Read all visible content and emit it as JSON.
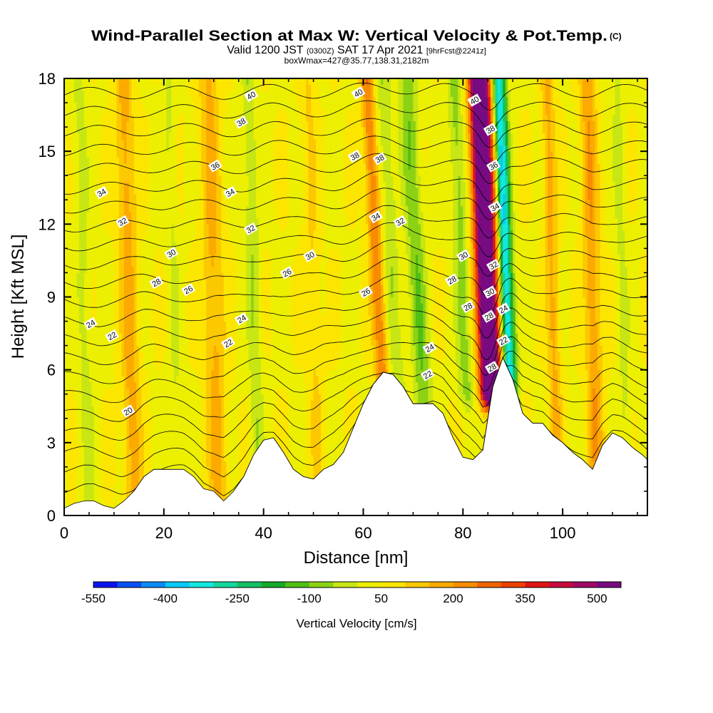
{
  "chart_data": {
    "type": "heatmap",
    "title": "Wind-Parallel Section at Max W: Vertical Velocity & Pot.Temp.",
    "title_mark": "(C)",
    "subtitle": {
      "lead": "Valid 1200 JST",
      "utc": "(0300Z)",
      "date": "SAT 17 Apr 2021",
      "fcst": "[9hrFcst@2241z]"
    },
    "subtitle2": "boxWmax=427@35.77,138.31,2182m",
    "xlabel": "Distance [nm]",
    "ylabel": "Height [Kft MSL]",
    "xlim": [
      0,
      117
    ],
    "ylim": [
      0,
      18
    ],
    "x_ticks": [
      0,
      20,
      40,
      60,
      80,
      100
    ],
    "y_ticks": [
      0,
      3,
      6,
      9,
      12,
      15,
      18
    ],
    "colorbar": {
      "label": "Vertical Velocity [cm/s]",
      "levels": [
        -550,
        -500,
        -450,
        -400,
        -350,
        -300,
        -250,
        -200,
        -150,
        -100,
        -50,
        0,
        50,
        100,
        150,
        200,
        250,
        300,
        350,
        400,
        450,
        500,
        550
      ],
      "tick_labels": [
        -550,
        -400,
        -250,
        -100,
        50,
        200,
        350,
        500
      ],
      "colors": [
        "#0a14f0",
        "#0a50f5",
        "#0a8cf8",
        "#0ac8f8",
        "#10e8e0",
        "#14d8a0",
        "#14c064",
        "#14aa28",
        "#50be14",
        "#8cd214",
        "#c8e614",
        "#ecf000",
        "#fce600",
        "#fcc800",
        "#fcaa00",
        "#f88c00",
        "#f06400",
        "#ec4000",
        "#e01414",
        "#c80a3c",
        "#a00a64",
        "#780a82"
      ]
    },
    "velocity_features": [
      {
        "x": 85,
        "w": 2.2,
        "val": 600
      },
      {
        "x": 84.4,
        "w": 1.3,
        "val": 150
      },
      {
        "x": 88.5,
        "w": 1.1,
        "val": -380
      },
      {
        "x": 89.7,
        "w": 1.0,
        "val": -150
      },
      {
        "x": 80,
        "w": 1.6,
        "val": -120
      },
      {
        "x": 71,
        "w": 1.8,
        "val": -140
      },
      {
        "x": 63,
        "w": 1.4,
        "val": 200
      },
      {
        "x": 66,
        "w": 1.5,
        "val": -90
      },
      {
        "x": 13,
        "w": 1.8,
        "val": 130
      },
      {
        "x": 4,
        "w": 1.5,
        "val": -60
      },
      {
        "x": 30,
        "w": 2.0,
        "val": 120
      },
      {
        "x": 38,
        "w": 1.3,
        "val": -90
      },
      {
        "x": 50,
        "w": 1.5,
        "val": 60
      },
      {
        "x": 98,
        "w": 1.3,
        "val": 120
      },
      {
        "x": 106,
        "w": 1.6,
        "val": 150
      },
      {
        "x": 112,
        "w": 1.2,
        "val": -60
      },
      {
        "x": 22,
        "w": 1.2,
        "val": -50
      }
    ],
    "terrain_x": [
      0,
      2,
      4,
      6,
      8,
      10,
      12,
      14,
      16,
      18,
      20,
      22,
      24,
      26,
      28,
      30,
      32,
      34,
      36,
      38,
      40,
      42,
      44,
      46,
      48,
      50,
      52,
      54,
      56,
      58,
      60,
      62,
      64,
      66,
      68,
      70,
      72,
      74,
      76,
      78,
      80,
      82,
      84,
      86,
      88,
      90,
      92,
      94,
      96,
      98,
      100,
      102,
      104,
      106,
      108,
      110,
      112,
      114,
      116,
      117
    ],
    "terrain_h": [
      0.3,
      0.5,
      0.6,
      0.6,
      0.4,
      0.3,
      0.6,
      1.0,
      1.6,
      1.9,
      1.9,
      1.9,
      1.9,
      1.6,
      1.1,
      1.0,
      0.6,
      1.0,
      1.6,
      2.5,
      3.1,
      3.2,
      2.6,
      1.9,
      1.6,
      1.5,
      1.9,
      2.1,
      2.6,
      3.6,
      4.6,
      5.4,
      5.9,
      5.8,
      5.3,
      4.6,
      4.6,
      4.6,
      4.2,
      3.2,
      2.4,
      2.3,
      2.7,
      5.3,
      6.5,
      5.6,
      4.2,
      3.8,
      3.8,
      3.3,
      3.0,
      2.6,
      2.3,
      1.9,
      2.9,
      3.4,
      3.2,
      2.8,
      2.5,
      2.3
    ],
    "theta_levels": [
      20,
      21,
      22,
      23,
      24,
      25,
      26,
      27,
      28,
      29,
      30,
      31,
      32,
      33,
      34,
      35,
      36,
      37,
      38,
      39,
      40,
      41
    ],
    "contour_labels": [
      {
        "text": "40",
        "x": 37.5,
        "y": 17.3
      },
      {
        "text": "40",
        "x": 59,
        "y": 17.4
      },
      {
        "text": "40",
        "x": 82.3,
        "y": 17.1
      },
      {
        "text": "38",
        "x": 35.5,
        "y": 16.2
      },
      {
        "text": "38",
        "x": 85.5,
        "y": 15.9
      },
      {
        "text": "38",
        "x": 58.3,
        "y": 14.8
      },
      {
        "text": "38",
        "x": 63.3,
        "y": 14.7
      },
      {
        "text": "36",
        "x": 30.3,
        "y": 14.4
      },
      {
        "text": "36",
        "x": 86.1,
        "y": 14.4
      },
      {
        "text": "34",
        "x": 7.5,
        "y": 13.3
      },
      {
        "text": "34",
        "x": 33.3,
        "y": 13.3
      },
      {
        "text": "34",
        "x": 86.4,
        "y": 12.7
      },
      {
        "text": "34",
        "x": 62.5,
        "y": 12.3
      },
      {
        "text": "32",
        "x": 11.7,
        "y": 12.1
      },
      {
        "text": "32",
        "x": 67.4,
        "y": 12.1
      },
      {
        "text": "32",
        "x": 37.4,
        "y": 11.8
      },
      {
        "text": "30",
        "x": 21.5,
        "y": 10.8
      },
      {
        "text": "30",
        "x": 49.3,
        "y": 10.7
      },
      {
        "text": "30",
        "x": 80.1,
        "y": 10.7
      },
      {
        "text": "32",
        "x": 86.1,
        "y": 10.3
      },
      {
        "text": "26",
        "x": 44.7,
        "y": 10.0
      },
      {
        "text": "28",
        "x": 18.5,
        "y": 9.6
      },
      {
        "text": "28",
        "x": 77.8,
        "y": 9.7
      },
      {
        "text": "26",
        "x": 24.9,
        "y": 9.3
      },
      {
        "text": "26",
        "x": 60.5,
        "y": 9.2
      },
      {
        "text": "30",
        "x": 85.4,
        "y": 9.2
      },
      {
        "text": "28",
        "x": 81,
        "y": 8.6
      },
      {
        "text": "24",
        "x": 88.1,
        "y": 8.5
      },
      {
        "text": "28",
        "x": 85.2,
        "y": 8.2
      },
      {
        "text": "24",
        "x": 35.6,
        "y": 8.1
      },
      {
        "text": "24",
        "x": 5.3,
        "y": 7.9
      },
      {
        "text": "22",
        "x": 9.6,
        "y": 7.4
      },
      {
        "text": "22",
        "x": 88.1,
        "y": 7.2
      },
      {
        "text": "22",
        "x": 32.9,
        "y": 7.1
      },
      {
        "text": "24",
        "x": 73.3,
        "y": 6.9
      },
      {
        "text": "28",
        "x": 85.8,
        "y": 6.1
      },
      {
        "text": "22",
        "x": 72.9,
        "y": 5.8
      },
      {
        "text": "20",
        "x": 12.8,
        "y": 4.3
      }
    ]
  }
}
